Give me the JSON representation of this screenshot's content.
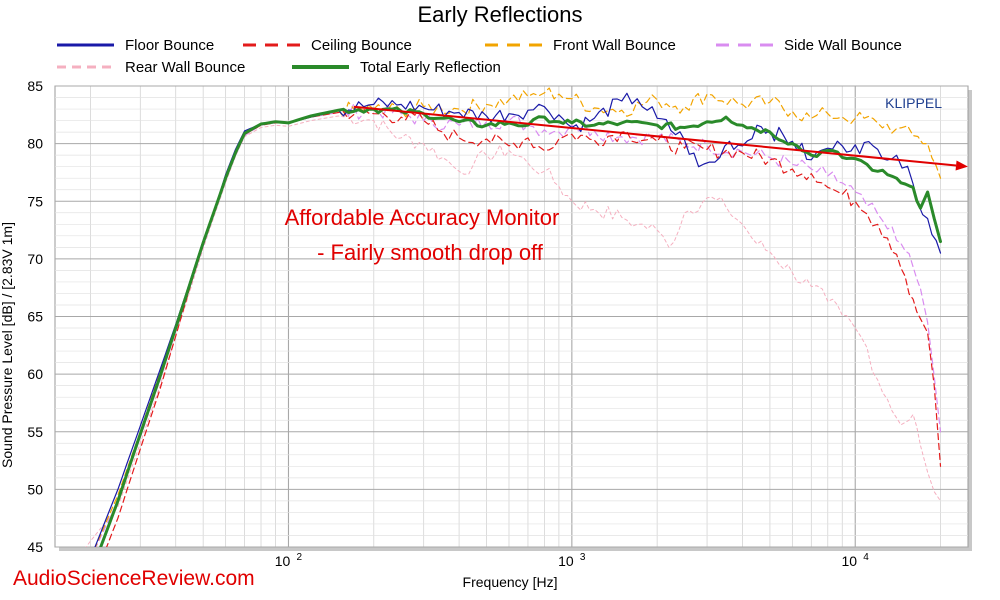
{
  "chart_data": {
    "type": "line",
    "title": "Early Reflections",
    "xlabel": "Frequency [Hz]",
    "ylabel": "Sound Pressure Level [dB]  / [2.83V 1m]",
    "x_scale": "log",
    "xlim": [
      15,
      25000
    ],
    "ylim": [
      45,
      85
    ],
    "yticks": [
      45,
      50,
      55,
      60,
      65,
      70,
      75,
      80,
      85
    ],
    "xticks": [
      {
        "value": 100,
        "base": "10",
        "exp": "2"
      },
      {
        "value": 1000,
        "base": "10",
        "exp": "3"
      },
      {
        "value": 10000,
        "base": "10",
        "exp": "4"
      }
    ],
    "grid": true,
    "legend_position": "top",
    "watermark": "KLIPPEL",
    "annotation": [
      "Affordable Accuracy Monitor",
      "- Fairly smooth drop off"
    ],
    "trend_arrow": {
      "color": "#e00000",
      "start": {
        "x": 170,
        "y": 83.2
      },
      "end": {
        "x": 25000,
        "y": 78.0
      }
    },
    "series": [
      {
        "name": "Floor Bounce",
        "color": "#1a1aa8",
        "width": 1.2,
        "dash": "",
        "points": [
          [
            20,
            44
          ],
          [
            25,
            50
          ],
          [
            30,
            55.5
          ],
          [
            35,
            60.2
          ],
          [
            40,
            64.3
          ],
          [
            45,
            68.1
          ],
          [
            50,
            71.6
          ],
          [
            55,
            74.4
          ],
          [
            60,
            77.3
          ],
          [
            65,
            79.5
          ],
          [
            70,
            81.1
          ],
          [
            80,
            81.7
          ],
          [
            90,
            81.9
          ],
          [
            100,
            81.8
          ],
          [
            120,
            82.3
          ],
          [
            150,
            82.9
          ],
          [
            200,
            83.4
          ],
          [
            250,
            83.4
          ],
          [
            300,
            83.1
          ],
          [
            400,
            82.7
          ],
          [
            500,
            82.4
          ],
          [
            600,
            82.6
          ],
          [
            700,
            82.9
          ],
          [
            800,
            83.2
          ],
          [
            900,
            82.5
          ],
          [
            1000,
            81.4
          ],
          [
            1200,
            82.2
          ],
          [
            1500,
            83.7
          ],
          [
            1700,
            83.9
          ],
          [
            2000,
            82.2
          ],
          [
            2500,
            80.3
          ],
          [
            2800,
            78.0
          ],
          [
            3200,
            78.4
          ],
          [
            3600,
            80.2
          ],
          [
            4000,
            79.8
          ],
          [
            4500,
            81.6
          ],
          [
            5000,
            81.1
          ],
          [
            6000,
            80.2
          ],
          [
            7000,
            78.6
          ],
          [
            8000,
            79.6
          ],
          [
            9000,
            79.8
          ],
          [
            10000,
            79.9
          ],
          [
            12000,
            79.5
          ],
          [
            14000,
            79.0
          ],
          [
            16000,
            76.5
          ],
          [
            18000,
            73.5
          ],
          [
            20000,
            70.5
          ]
        ]
      },
      {
        "name": "Ceiling Bounce",
        "color": "#e31b1b",
        "width": 1.2,
        "dash": "6 4",
        "points": [
          [
            22,
            44
          ],
          [
            25,
            47.5
          ],
          [
            30,
            53.5
          ],
          [
            35,
            58.5
          ],
          [
            40,
            63.3
          ],
          [
            45,
            67.6
          ],
          [
            50,
            71.2
          ],
          [
            55,
            74.2
          ],
          [
            60,
            76.9
          ],
          [
            65,
            79.2
          ],
          [
            70,
            80.8
          ],
          [
            80,
            81.6
          ],
          [
            90,
            81.8
          ],
          [
            100,
            81.8
          ],
          [
            120,
            82.3
          ],
          [
            150,
            82.7
          ],
          [
            200,
            82.6
          ],
          [
            250,
            82.3
          ],
          [
            300,
            82.0
          ],
          [
            350,
            81.0
          ],
          [
            400,
            80.5
          ],
          [
            500,
            80.4
          ],
          [
            600,
            79.8
          ],
          [
            700,
            80.5
          ],
          [
            800,
            79.4
          ],
          [
            900,
            80.4
          ],
          [
            1000,
            80.8
          ],
          [
            1200,
            80.3
          ],
          [
            1500,
            81.0
          ],
          [
            2000,
            80.2
          ],
          [
            2500,
            79.6
          ],
          [
            3000,
            79.5
          ],
          [
            4000,
            79.2
          ],
          [
            5000,
            78.6
          ],
          [
            6000,
            77.8
          ],
          [
            7000,
            77.4
          ],
          [
            8000,
            76.2
          ],
          [
            9000,
            75.6
          ],
          [
            10000,
            75.0
          ],
          [
            11000,
            73.9
          ],
          [
            12000,
            73.0
          ],
          [
            13000,
            71.8
          ],
          [
            14000,
            70.4
          ],
          [
            15000,
            68.5
          ],
          [
            16000,
            66.5
          ],
          [
            17000,
            64.8
          ],
          [
            18000,
            63.6
          ],
          [
            19000,
            59.0
          ],
          [
            20000,
            52.0
          ]
        ]
      },
      {
        "name": "Front Wall Bounce",
        "color": "#f2a400",
        "width": 1.2,
        "dash": "6 4",
        "points": [
          [
            20,
            44
          ],
          [
            25,
            49.5
          ],
          [
            30,
            55
          ],
          [
            35,
            60
          ],
          [
            40,
            64
          ],
          [
            45,
            67.9
          ],
          [
            50,
            71.3
          ],
          [
            55,
            74.2
          ],
          [
            60,
            76.9
          ],
          [
            65,
            79.1
          ],
          [
            70,
            80.8
          ],
          [
            80,
            81.7
          ],
          [
            90,
            81.9
          ],
          [
            100,
            81.8
          ],
          [
            120,
            82.3
          ],
          [
            150,
            82.9
          ],
          [
            200,
            83.0
          ],
          [
            250,
            82.9
          ],
          [
            300,
            83.2
          ],
          [
            400,
            83.0
          ],
          [
            500,
            83.4
          ],
          [
            600,
            83.8
          ],
          [
            700,
            84.1
          ],
          [
            800,
            84.4
          ],
          [
            900,
            84.3
          ],
          [
            1000,
            83.9
          ],
          [
            1200,
            83.1
          ],
          [
            1500,
            82.9
          ],
          [
            2000,
            83.8
          ],
          [
            2500,
            83.2
          ],
          [
            3000,
            84.3
          ],
          [
            4000,
            83.4
          ],
          [
            5000,
            83.6
          ],
          [
            6000,
            82.8
          ],
          [
            7000,
            82.2
          ],
          [
            8000,
            82.6
          ],
          [
            9000,
            82.3
          ],
          [
            10000,
            82.2
          ],
          [
            12000,
            81.8
          ],
          [
            14000,
            81.3
          ],
          [
            16000,
            80.7
          ],
          [
            18000,
            80.0
          ],
          [
            20000,
            77.0
          ]
        ]
      },
      {
        "name": "Side Wall Bounce",
        "color": "#d98cf0",
        "width": 1.2,
        "dash": "6 4",
        "points": [
          [
            20,
            44
          ],
          [
            25,
            49
          ],
          [
            30,
            54.5
          ],
          [
            35,
            59.3
          ],
          [
            40,
            63.7
          ],
          [
            45,
            67.6
          ],
          [
            50,
            71.1
          ],
          [
            55,
            74.1
          ],
          [
            60,
            76.8
          ],
          [
            65,
            79.0
          ],
          [
            70,
            80.7
          ],
          [
            80,
            81.6
          ],
          [
            90,
            81.8
          ],
          [
            100,
            81.8
          ],
          [
            120,
            82.3
          ],
          [
            150,
            82.7
          ],
          [
            200,
            82.9
          ],
          [
            250,
            82.6
          ],
          [
            300,
            82.0
          ],
          [
            400,
            81.6
          ],
          [
            500,
            81.9
          ],
          [
            600,
            82.0
          ],
          [
            700,
            81.6
          ],
          [
            800,
            81.2
          ],
          [
            900,
            81.0
          ],
          [
            1000,
            81.6
          ],
          [
            1200,
            81.1
          ],
          [
            1500,
            80.6
          ],
          [
            2000,
            80.6
          ],
          [
            2500,
            80.0
          ],
          [
            3000,
            79.8
          ],
          [
            4000,
            79.3
          ],
          [
            5000,
            78.8
          ],
          [
            6000,
            78.2
          ],
          [
            7000,
            77.8
          ],
          [
            8000,
            77.2
          ],
          [
            9000,
            76.6
          ],
          [
            10000,
            75.8
          ],
          [
            11000,
            74.6
          ],
          [
            12000,
            73.9
          ],
          [
            13000,
            72.6
          ],
          [
            14000,
            71.6
          ],
          [
            15000,
            70.7
          ],
          [
            16000,
            69.3
          ],
          [
            17000,
            67.4
          ],
          [
            18000,
            64.5
          ],
          [
            19000,
            59.8
          ],
          [
            20000,
            55.0
          ]
        ]
      },
      {
        "name": "Rear Wall Bounce",
        "color": "#f5b0c0",
        "width": 1.0,
        "dash": "3 3",
        "points": [
          [
            18,
            44
          ],
          [
            20,
            45.5
          ],
          [
            25,
            48.5
          ],
          [
            30,
            54
          ],
          [
            35,
            58.8
          ],
          [
            40,
            63.3
          ],
          [
            45,
            67.3
          ],
          [
            50,
            70.9
          ],
          [
            55,
            73.9
          ],
          [
            60,
            76.6
          ],
          [
            65,
            78.9
          ],
          [
            70,
            80.6
          ],
          [
            80,
            81.4
          ],
          [
            90,
            81.6
          ],
          [
            100,
            81.5
          ],
          [
            120,
            82.0
          ],
          [
            150,
            82.4
          ],
          [
            200,
            82.0
          ],
          [
            250,
            80.5
          ],
          [
            300,
            80.0
          ],
          [
            350,
            78.8
          ],
          [
            400,
            77.6
          ],
          [
            450,
            78.2
          ],
          [
            500,
            79.0
          ],
          [
            600,
            79.4
          ],
          [
            700,
            78.3
          ],
          [
            800,
            77.6
          ],
          [
            900,
            76.3
          ],
          [
            1000,
            75.0
          ],
          [
            1200,
            74.3
          ],
          [
            1500,
            73.6
          ],
          [
            1700,
            73.0
          ],
          [
            2000,
            72.5
          ],
          [
            2200,
            71.0
          ],
          [
            2500,
            74.0
          ],
          [
            3000,
            75.3
          ],
          [
            3500,
            74.5
          ],
          [
            4000,
            73.0
          ],
          [
            4500,
            71.3
          ],
          [
            5000,
            70.6
          ],
          [
            6000,
            68.8
          ],
          [
            7000,
            67.6
          ],
          [
            8000,
            66.3
          ],
          [
            9000,
            65.1
          ],
          [
            10000,
            64.0
          ],
          [
            11000,
            62.3
          ],
          [
            12000,
            59.5
          ],
          [
            13000,
            57.8
          ],
          [
            14000,
            56.2
          ],
          [
            15000,
            55.8
          ],
          [
            16000,
            56.5
          ],
          [
            17000,
            53.8
          ],
          [
            18000,
            51.5
          ],
          [
            19000,
            49.8
          ],
          [
            20000,
            49.0
          ]
        ]
      },
      {
        "name": "Total Early Reflection",
        "color": "#2a8a2a",
        "width": 3.0,
        "dash": "",
        "points": [
          [
            21,
            44
          ],
          [
            25,
            49
          ],
          [
            30,
            54.8
          ],
          [
            35,
            59.6
          ],
          [
            40,
            64.0
          ],
          [
            45,
            67.9
          ],
          [
            50,
            71.4
          ],
          [
            55,
            74.3
          ],
          [
            60,
            77.0
          ],
          [
            65,
            79.2
          ],
          [
            70,
            80.9
          ],
          [
            80,
            81.7
          ],
          [
            90,
            81.9
          ],
          [
            100,
            81.8
          ],
          [
            120,
            82.4
          ],
          [
            150,
            82.9
          ],
          [
            200,
            83.0
          ],
          [
            250,
            82.8
          ],
          [
            300,
            82.6
          ],
          [
            400,
            81.9
          ],
          [
            500,
            81.6
          ],
          [
            600,
            81.8
          ],
          [
            700,
            81.6
          ],
          [
            800,
            82.3
          ],
          [
            900,
            81.9
          ],
          [
            1000,
            81.8
          ],
          [
            1200,
            81.6
          ],
          [
            1500,
            81.8
          ],
          [
            2000,
            81.6
          ],
          [
            2500,
            81.4
          ],
          [
            3000,
            81.9
          ],
          [
            3500,
            82.3
          ],
          [
            4000,
            81.6
          ],
          [
            5000,
            81.0
          ],
          [
            6000,
            80.0
          ],
          [
            7000,
            79.0
          ],
          [
            8000,
            79.4
          ],
          [
            9000,
            78.8
          ],
          [
            10000,
            78.7
          ],
          [
            11000,
            78.2
          ],
          [
            12000,
            77.6
          ],
          [
            13000,
            77.3
          ],
          [
            14000,
            77.0
          ],
          [
            15000,
            76.5
          ],
          [
            16000,
            76.2
          ],
          [
            17000,
            74.4
          ],
          [
            18000,
            75.8
          ],
          [
            19000,
            73.5
          ],
          [
            20000,
            71.5
          ]
        ]
      }
    ]
  },
  "source_label": "AudioScienceReview.com"
}
